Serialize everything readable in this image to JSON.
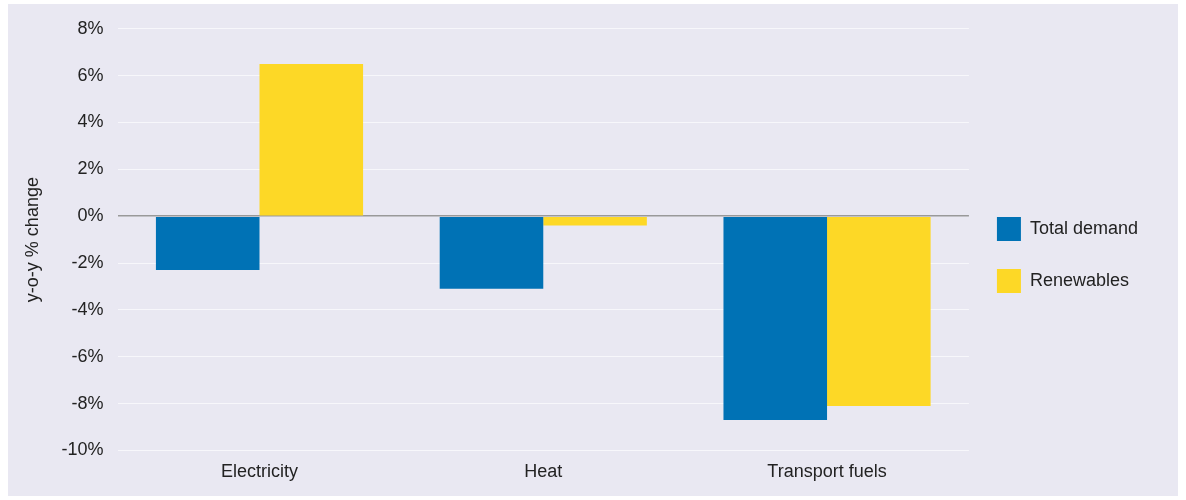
{
  "chart_data": {
    "type": "bar",
    "ylabel": "y-o-y % change",
    "categories": [
      "Electricity",
      "Heat",
      "Transport fuels"
    ],
    "series": [
      {
        "name": "Total demand",
        "color": "#0072b5",
        "values": [
          -2.3,
          -3.1,
          -8.7
        ]
      },
      {
        "name": "Renewables",
        "color": "#fdd826",
        "values": [
          6.5,
          -0.4,
          -8.1
        ]
      }
    ],
    "ylim": [
      -10,
      8
    ],
    "yticks": [
      {
        "value": -10,
        "label": "-10%"
      },
      {
        "value": -8,
        "label": "-8%"
      },
      {
        "value": -6,
        "label": "-6%"
      },
      {
        "value": -4,
        "label": "-4%"
      },
      {
        "value": -2,
        "label": "-2%"
      },
      {
        "value": 0,
        "label": "0%"
      },
      {
        "value": 2,
        "label": "2%"
      },
      {
        "value": 4,
        "label": "4%"
      },
      {
        "value": 6,
        "label": "6%"
      },
      {
        "value": 8,
        "label": "8%"
      }
    ],
    "grid": "y",
    "legend": "right"
  }
}
